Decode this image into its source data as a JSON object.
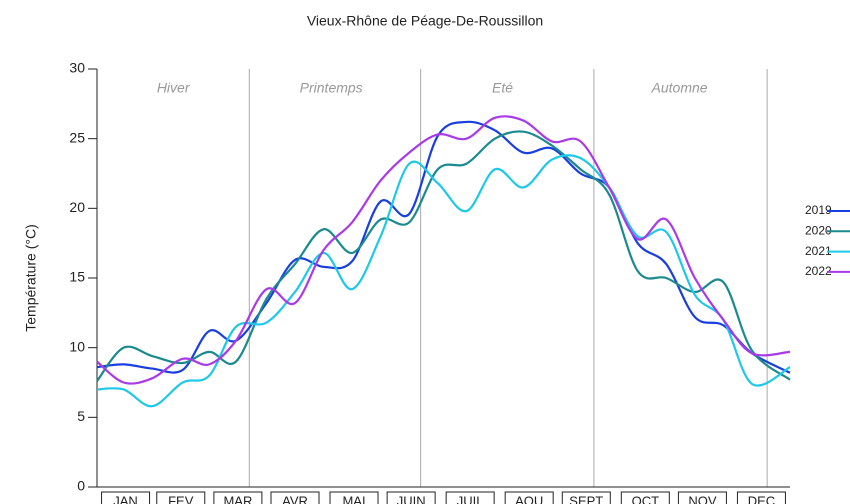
{
  "chart_data": {
    "type": "line",
    "title": "Vieux-Rhône de Péage-De-Roussillon",
    "y_label": "Température (°C)",
    "x": [
      1,
      15,
      30,
      46,
      60,
      74,
      90,
      105,
      120,
      135,
      150,
      165,
      180,
      195,
      210,
      225,
      240,
      255,
      270,
      285,
      300,
      315,
      330,
      345,
      365
    ],
    "xlim": [
      1,
      365
    ],
    "xticks": [
      {
        "value": 16,
        "label": "JAN"
      },
      {
        "value": 45,
        "label": "FEV"
      },
      {
        "value": 75,
        "label": "MAR"
      },
      {
        "value": 105,
        "label": "AVR"
      },
      {
        "value": 136,
        "label": "MAI"
      },
      {
        "value": 166,
        "label": "JUIN"
      },
      {
        "value": 197,
        "label": "JUIL"
      },
      {
        "value": 228,
        "label": "AOU"
      },
      {
        "value": 258,
        "label": "SEPT"
      },
      {
        "value": 289,
        "label": "OCT"
      },
      {
        "value": 319,
        "label": "NOV"
      },
      {
        "value": 350,
        "label": "DEC"
      }
    ],
    "ylim": [
      0,
      30
    ],
    "yticks": [
      0,
      5,
      10,
      15,
      20,
      25,
      30
    ],
    "seasons": [
      {
        "label": "Hiver",
        "x": 41
      },
      {
        "label": "Printemps",
        "x": 124
      },
      {
        "label": "Eté",
        "x": 214
      },
      {
        "label": "Automne",
        "x": 307
      }
    ],
    "season_lines": [
      81,
      171,
      262,
      353
    ],
    "legend": "right",
    "series": [
      {
        "name": "2019",
        "color": "#1a3fe0",
        "values": [
          8.6,
          8.8,
          8.5,
          8.4,
          11.2,
          10.5,
          13.2,
          16.3,
          15.8,
          16.2,
          20.5,
          19.6,
          25.2,
          26.2,
          25.6,
          24.0,
          24.3,
          22.5,
          21.5,
          17.5,
          16.0,
          12.2,
          11.6,
          9.6,
          8.2
        ]
      },
      {
        "name": "2020",
        "color": "#1a8a8e",
        "values": [
          7.6,
          10.0,
          9.4,
          8.9,
          9.7,
          9.0,
          13.5,
          16.0,
          18.5,
          16.8,
          19.2,
          19.0,
          22.8,
          23.2,
          25.0,
          25.5,
          24.5,
          22.8,
          21.0,
          15.5,
          15.0,
          14.0,
          14.7,
          9.8,
          7.7
        ]
      },
      {
        "name": "2021",
        "color": "#1ec8e8",
        "values": [
          7.0,
          7.0,
          5.8,
          7.5,
          8.0,
          11.5,
          11.8,
          14.0,
          16.8,
          14.2,
          18.0,
          23.2,
          21.8,
          19.8,
          22.8,
          21.5,
          23.5,
          23.6,
          21.5,
          18.0,
          18.3,
          13.8,
          12.0,
          7.4,
          8.6
        ]
      },
      {
        "name": "2022",
        "color": "#a83ae8",
        "values": [
          9.0,
          7.5,
          7.8,
          9.2,
          8.8,
          10.5,
          14.2,
          13.2,
          17.0,
          19.0,
          22.0,
          24.0,
          25.3,
          25.0,
          26.5,
          26.3,
          24.8,
          24.8,
          21.5,
          17.8,
          19.2,
          15.0,
          12.0,
          9.6,
          9.7
        ]
      }
    ]
  }
}
